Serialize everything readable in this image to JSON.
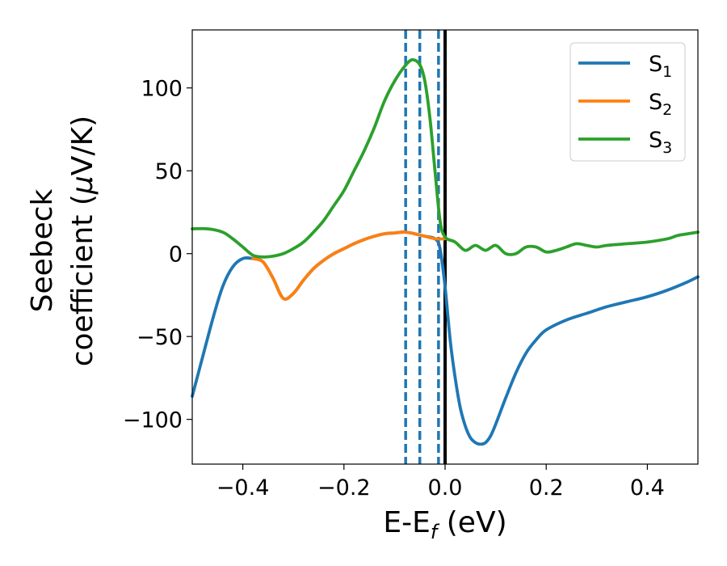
{
  "chart_data": {
    "type": "line",
    "xlabel": {
      "main": "E-E",
      "sub": "f",
      "tail": " (eV)"
    },
    "ylabel": {
      "line1": "Seebeck",
      "line2_pre": "coefficient  (",
      "line2_mu": "μ",
      "line2_post": "V/K)"
    },
    "xlim": [
      -0.5,
      0.5
    ],
    "ylim": [
      -127,
      135
    ],
    "xticks": [
      {
        "value": -0.4,
        "label": "−0.4"
      },
      {
        "value": -0.2,
        "label": "−0.2"
      },
      {
        "value": 0.0,
        "label": "0.0"
      },
      {
        "value": 0.2,
        "label": "0.2"
      },
      {
        "value": 0.4,
        "label": "0.4"
      }
    ],
    "yticks": [
      {
        "value": -100,
        "label": "−100"
      },
      {
        "value": -50,
        "label": "−50"
      },
      {
        "value": 0,
        "label": "0"
      },
      {
        "value": 50,
        "label": "50"
      },
      {
        "value": 100,
        "label": "100"
      }
    ],
    "legend_position": "top-right",
    "vertical_lines": [
      {
        "x": -0.078,
        "style": "dashed",
        "color": "#1f77b4"
      },
      {
        "x": -0.05,
        "style": "dashed",
        "color": "#1f77b4"
      },
      {
        "x": -0.013,
        "style": "dashed",
        "color": "#1f77b4"
      },
      {
        "x": 0.0,
        "style": "solid",
        "color": "#000000"
      }
    ],
    "series": [
      {
        "name": "S",
        "sub": "1",
        "color": "#1f77b4",
        "points": [
          [
            -0.5,
            -86
          ],
          [
            -0.48,
            -63
          ],
          [
            -0.46,
            -40
          ],
          [
            -0.44,
            -20
          ],
          [
            -0.42,
            -8
          ],
          [
            -0.4,
            -3
          ],
          [
            -0.38,
            -3
          ],
          [
            -0.36,
            -5
          ],
          [
            -0.34,
            -15
          ],
          [
            -0.32,
            -27
          ],
          [
            -0.3,
            -24
          ],
          [
            -0.28,
            -16
          ],
          [
            -0.26,
            -9
          ],
          [
            -0.24,
            -4
          ],
          [
            -0.22,
            0
          ],
          [
            -0.2,
            3
          ],
          [
            -0.18,
            6
          ],
          [
            -0.16,
            8.5
          ],
          [
            -0.14,
            10.5
          ],
          [
            -0.12,
            12
          ],
          [
            -0.1,
            12.5
          ],
          [
            -0.08,
            13
          ],
          [
            -0.06,
            12
          ],
          [
            -0.04,
            10.5
          ],
          [
            -0.02,
            9
          ],
          [
            -0.01,
            3
          ],
          [
            0.0,
            -20
          ],
          [
            0.01,
            -52
          ],
          [
            0.02,
            -75
          ],
          [
            0.03,
            -93
          ],
          [
            0.04,
            -104
          ],
          [
            0.05,
            -111
          ],
          [
            0.06,
            -114
          ],
          [
            0.07,
            -115
          ],
          [
            0.08,
            -114
          ],
          [
            0.09,
            -110
          ],
          [
            0.1,
            -103
          ],
          [
            0.12,
            -87
          ],
          [
            0.14,
            -72
          ],
          [
            0.16,
            -60
          ],
          [
            0.18,
            -52
          ],
          [
            0.2,
            -46
          ],
          [
            0.24,
            -40
          ],
          [
            0.28,
            -36
          ],
          [
            0.32,
            -32
          ],
          [
            0.36,
            -29
          ],
          [
            0.4,
            -26
          ],
          [
            0.44,
            -22
          ],
          [
            0.48,
            -17
          ],
          [
            0.5,
            -14
          ]
        ]
      },
      {
        "name": "S",
        "sub": "2",
        "color": "#ff7f0e",
        "points": [
          [
            -0.38,
            -3
          ],
          [
            -0.36,
            -5
          ],
          [
            -0.34,
            -15
          ],
          [
            -0.32,
            -27
          ],
          [
            -0.3,
            -24
          ],
          [
            -0.28,
            -16
          ],
          [
            -0.26,
            -9
          ],
          [
            -0.24,
            -4
          ],
          [
            -0.22,
            0
          ],
          [
            -0.2,
            3
          ],
          [
            -0.18,
            6
          ],
          [
            -0.16,
            8.5
          ],
          [
            -0.14,
            10.5
          ],
          [
            -0.12,
            12
          ],
          [
            -0.1,
            12.5
          ],
          [
            -0.08,
            13
          ],
          [
            -0.06,
            12
          ],
          [
            -0.04,
            10.5
          ],
          [
            -0.02,
            9
          ],
          [
            0.0,
            9
          ]
        ]
      },
      {
        "name": "S",
        "sub": "3",
        "color": "#2ca02c",
        "points": [
          [
            -0.5,
            15
          ],
          [
            -0.47,
            15
          ],
          [
            -0.44,
            13
          ],
          [
            -0.42,
            9
          ],
          [
            -0.4,
            4
          ],
          [
            -0.38,
            -1
          ],
          [
            -0.36,
            -2
          ],
          [
            -0.34,
            -1.5
          ],
          [
            -0.32,
            0
          ],
          [
            -0.3,
            3
          ],
          [
            -0.28,
            7
          ],
          [
            -0.26,
            13
          ],
          [
            -0.24,
            20
          ],
          [
            -0.22,
            29
          ],
          [
            -0.2,
            38
          ],
          [
            -0.18,
            50
          ],
          [
            -0.16,
            62
          ],
          [
            -0.14,
            76
          ],
          [
            -0.12,
            92
          ],
          [
            -0.1,
            104
          ],
          [
            -0.08,
            113
          ],
          [
            -0.065,
            117
          ],
          [
            -0.05,
            114
          ],
          [
            -0.04,
            104
          ],
          [
            -0.03,
            82
          ],
          [
            -0.02,
            50
          ],
          [
            -0.01,
            20
          ],
          [
            0.0,
            10
          ],
          [
            0.02,
            7
          ],
          [
            0.04,
            2
          ],
          [
            0.06,
            5
          ],
          [
            0.08,
            2
          ],
          [
            0.1,
            5
          ],
          [
            0.12,
            0
          ],
          [
            0.14,
            0
          ],
          [
            0.16,
            4
          ],
          [
            0.18,
            4
          ],
          [
            0.2,
            1
          ],
          [
            0.22,
            2
          ],
          [
            0.24,
            4
          ],
          [
            0.26,
            6
          ],
          [
            0.28,
            5
          ],
          [
            0.3,
            4
          ],
          [
            0.32,
            5
          ],
          [
            0.36,
            6
          ],
          [
            0.4,
            7
          ],
          [
            0.44,
            9
          ],
          [
            0.46,
            11
          ],
          [
            0.48,
            12
          ],
          [
            0.5,
            13
          ]
        ]
      }
    ]
  }
}
